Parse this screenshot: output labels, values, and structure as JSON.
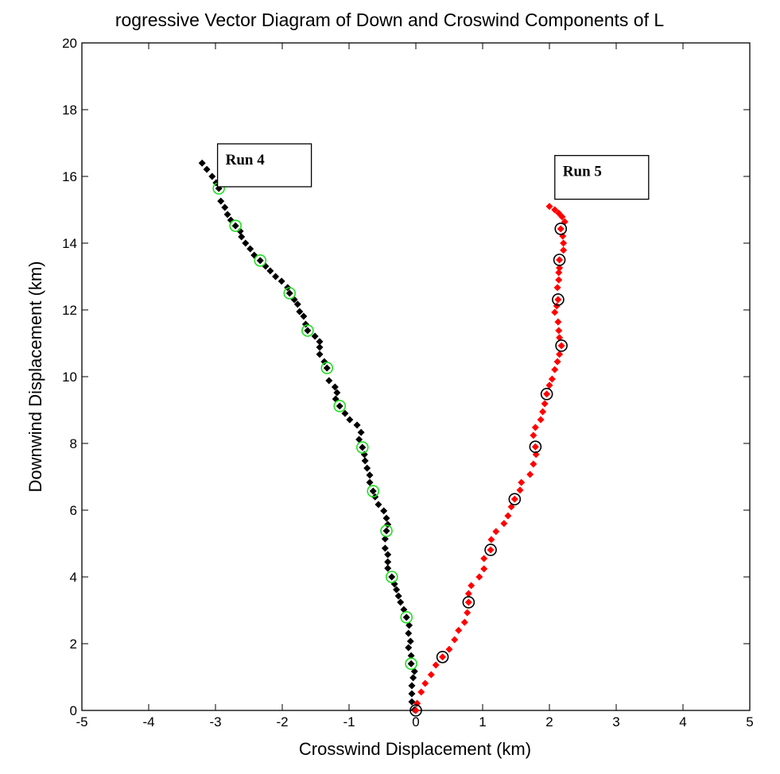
{
  "chart_data": {
    "type": "scatter",
    "title": "rogressive Vector Diagram of Down and Croswind Components of L",
    "xlabel": "Crosswind Displacement (km)",
    "ylabel": "Downwind Displacement (km)",
    "xlim": [
      -5,
      5
    ],
    "ylim": [
      0,
      20
    ],
    "xticks": [
      -5,
      -4,
      -3,
      -2,
      -1,
      0,
      1,
      2,
      3,
      4,
      5
    ],
    "yticks": [
      0,
      2,
      4,
      6,
      8,
      10,
      12,
      14,
      16,
      18,
      20
    ],
    "grid": false,
    "annotations": [
      {
        "text": "Run 4",
        "x": -2.85,
        "y": 16.5
      },
      {
        "text": "Run 5",
        "x": 2.2,
        "y": 16.15
      }
    ],
    "series": [
      {
        "color": "#000000",
        "marker": "diamond",
        "points": [
          [
            -0.02,
            0.02
          ],
          [
            -0.06,
            0.26
          ],
          [
            -0.06,
            0.5
          ],
          [
            -0.06,
            0.74
          ],
          [
            -0.04,
            0.98
          ],
          [
            -0.02,
            1.17
          ],
          [
            -0.07,
            1.4
          ],
          [
            -0.07,
            1.64
          ],
          [
            -0.11,
            1.88
          ],
          [
            -0.08,
            2.07
          ],
          [
            -0.11,
            2.31
          ],
          [
            -0.1,
            2.55
          ],
          [
            -0.14,
            2.79
          ],
          [
            -0.18,
            3.02
          ],
          [
            -0.23,
            3.24
          ],
          [
            -0.26,
            3.43
          ],
          [
            -0.29,
            3.62
          ],
          [
            -0.32,
            3.79
          ],
          [
            -0.36,
            4.0
          ],
          [
            -0.42,
            4.26
          ],
          [
            -0.42,
            4.45
          ],
          [
            -0.42,
            4.67
          ],
          [
            -0.46,
            4.86
          ],
          [
            -0.46,
            5.14
          ],
          [
            -0.44,
            5.38
          ],
          [
            -0.42,
            5.57
          ],
          [
            -0.44,
            5.76
          ],
          [
            -0.48,
            5.98
          ],
          [
            -0.56,
            6.17
          ],
          [
            -0.61,
            6.4
          ],
          [
            -0.64,
            6.57
          ],
          [
            -0.69,
            6.83
          ],
          [
            -0.69,
            7.05
          ],
          [
            -0.73,
            7.26
          ],
          [
            -0.76,
            7.48
          ],
          [
            -0.77,
            7.67
          ],
          [
            -0.8,
            7.88
          ],
          [
            -0.85,
            8.12
          ],
          [
            -0.82,
            8.33
          ],
          [
            -0.88,
            8.55
          ],
          [
            -0.99,
            8.71
          ],
          [
            -1.06,
            8.9
          ],
          [
            -1.14,
            9.12
          ],
          [
            -1.2,
            9.33
          ],
          [
            -1.18,
            9.52
          ],
          [
            -1.21,
            9.69
          ],
          [
            -1.3,
            9.88
          ],
          [
            -1.33,
            10.26
          ],
          [
            -1.37,
            10.45
          ],
          [
            -1.44,
            10.67
          ],
          [
            -1.44,
            10.88
          ],
          [
            -1.44,
            11.05
          ],
          [
            -1.51,
            11.21
          ],
          [
            -1.62,
            11.38
          ],
          [
            -1.65,
            11.57
          ],
          [
            -1.68,
            11.81
          ],
          [
            -1.74,
            11.95
          ],
          [
            -1.77,
            12.17
          ],
          [
            -1.82,
            12.31
          ],
          [
            -1.89,
            12.5
          ],
          [
            -1.92,
            12.67
          ],
          [
            -2.01,
            12.86
          ],
          [
            -2.1,
            13.0
          ],
          [
            -2.18,
            13.17
          ],
          [
            -2.25,
            13.31
          ],
          [
            -2.33,
            13.48
          ],
          [
            -2.42,
            13.64
          ],
          [
            -2.48,
            13.83
          ],
          [
            -2.55,
            14.0
          ],
          [
            -2.61,
            14.19
          ],
          [
            -2.63,
            14.36
          ],
          [
            -2.7,
            14.52
          ],
          [
            -2.77,
            14.69
          ],
          [
            -2.82,
            14.86
          ],
          [
            -2.86,
            15.07
          ],
          [
            -2.92,
            15.26
          ],
          [
            -2.95,
            15.64
          ],
          [
            -2.99,
            15.81
          ],
          [
            -3.05,
            16.0
          ],
          [
            -3.13,
            16.21
          ],
          [
            -3.2,
            16.4
          ]
        ],
        "circle_color": "#22dd22",
        "circled_points": [
          [
            -0.07,
            1.4
          ],
          [
            -0.14,
            2.79
          ],
          [
            -0.36,
            4.0
          ],
          [
            -0.44,
            5.38
          ],
          [
            -0.64,
            6.57
          ],
          [
            -0.8,
            7.88
          ],
          [
            -1.14,
            9.12
          ],
          [
            -1.33,
            10.26
          ],
          [
            -1.62,
            11.38
          ],
          [
            -1.89,
            12.5
          ],
          [
            -2.33,
            13.48
          ],
          [
            -2.7,
            14.52
          ],
          [
            -2.95,
            15.64
          ]
        ]
      },
      {
        "color": "#ff0000",
        "marker": "diamond",
        "points": [
          [
            0.0,
            0.0
          ],
          [
            0.02,
            0.21
          ],
          [
            0.08,
            0.55
          ],
          [
            0.14,
            0.81
          ],
          [
            0.23,
            1.07
          ],
          [
            0.3,
            1.36
          ],
          [
            0.4,
            1.6
          ],
          [
            0.5,
            1.83
          ],
          [
            0.58,
            2.12
          ],
          [
            0.64,
            2.4
          ],
          [
            0.73,
            2.64
          ],
          [
            0.77,
            2.93
          ],
          [
            0.79,
            3.24
          ],
          [
            0.79,
            3.5
          ],
          [
            0.83,
            3.74
          ],
          [
            0.95,
            4.0
          ],
          [
            1.02,
            4.24
          ],
          [
            1.02,
            4.55
          ],
          [
            1.12,
            4.81
          ],
          [
            1.13,
            5.12
          ],
          [
            1.2,
            5.36
          ],
          [
            1.32,
            5.6
          ],
          [
            1.38,
            5.83
          ],
          [
            1.43,
            6.1
          ],
          [
            1.48,
            6.33
          ],
          [
            1.56,
            6.6
          ],
          [
            1.58,
            6.83
          ],
          [
            1.71,
            7.07
          ],
          [
            1.76,
            7.38
          ],
          [
            1.8,
            7.67
          ],
          [
            1.79,
            7.9
          ],
          [
            1.76,
            8.24
          ],
          [
            1.79,
            8.48
          ],
          [
            1.87,
            8.71
          ],
          [
            1.9,
            8.95
          ],
          [
            1.93,
            9.19
          ],
          [
            1.96,
            9.48
          ],
          [
            2.0,
            9.74
          ],
          [
            2.04,
            9.93
          ],
          [
            2.08,
            10.21
          ],
          [
            2.12,
            10.45
          ],
          [
            2.15,
            10.67
          ],
          [
            2.18,
            10.93
          ],
          [
            2.15,
            11.17
          ],
          [
            2.14,
            11.38
          ],
          [
            2.13,
            11.64
          ],
          [
            2.08,
            11.93
          ],
          [
            2.11,
            12.12
          ],
          [
            2.13,
            12.31
          ],
          [
            2.12,
            12.67
          ],
          [
            2.14,
            12.9
          ],
          [
            2.14,
            13.12
          ],
          [
            2.15,
            13.26
          ],
          [
            2.15,
            13.5
          ],
          [
            2.21,
            13.79
          ],
          [
            2.21,
            14.0
          ],
          [
            2.2,
            14.21
          ],
          [
            2.17,
            14.43
          ],
          [
            2.23,
            14.64
          ],
          [
            2.19,
            14.79
          ],
          [
            2.14,
            14.9
          ],
          [
            2.08,
            15.0
          ],
          [
            2.0,
            15.1
          ]
        ],
        "circle_color": "#000000",
        "circled_points": [
          [
            0.0,
            0.0
          ],
          [
            0.4,
            1.6
          ],
          [
            0.79,
            3.24
          ],
          [
            1.12,
            4.81
          ],
          [
            1.48,
            6.33
          ],
          [
            1.79,
            7.9
          ],
          [
            1.96,
            9.48
          ],
          [
            2.18,
            10.93
          ],
          [
            2.13,
            12.31
          ],
          [
            2.15,
            13.5
          ],
          [
            2.17,
            14.43
          ]
        ]
      }
    ]
  }
}
